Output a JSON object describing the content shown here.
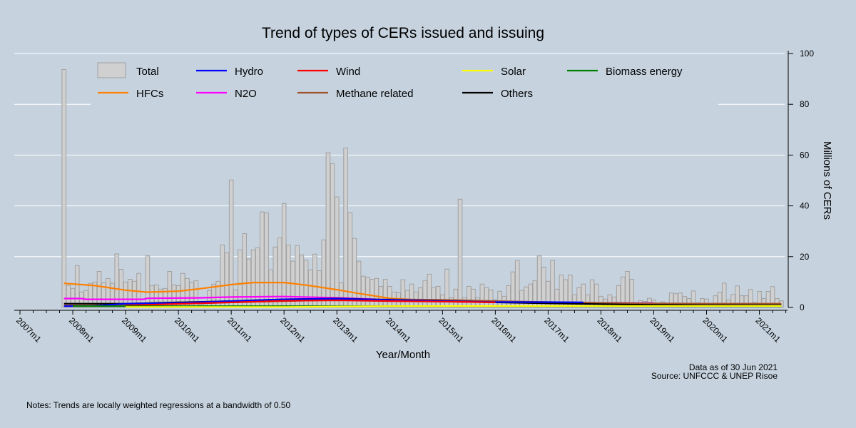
{
  "chart_data": {
    "type": "bar",
    "title": "Trend of types of CERs issued and issuing",
    "xlabel": "Year/Month",
    "ylabel": "Millions of CERs",
    "ylim": [
      0,
      100
    ],
    "yticks": [
      0,
      20,
      40,
      60,
      80,
      100
    ],
    "xticks": [
      "2007m1",
      "2008m1",
      "2009m1",
      "2010m1",
      "2011m1",
      "2012m1",
      "2013m1",
      "2014m1",
      "2015m1",
      "2016m1",
      "2017m1",
      "2018m1",
      "2019m1",
      "2020m1",
      "2021m1"
    ],
    "xlim": [
      "2007m1",
      "2021m6"
    ],
    "grid": true,
    "legend_position": "top",
    "colors": {
      "Total": "#d0d0d0",
      "Hydro": "#0000ff",
      "Wind": "#ff0000",
      "Solar": "#ffff00",
      "Biomass energy": "#008000",
      "HFCs": "#ff8000",
      "N2O": "#ff00ff",
      "Methane related": "#a0522d",
      "Others": "#000000"
    },
    "bars": {
      "name": "Total",
      "start": "2007m11",
      "values": [
        93.7,
        8.7,
        7.5,
        16.5,
        6.1,
        6.7,
        9.5,
        10,
        14.2,
        9.7,
        11.4,
        9.5,
        21.1,
        15,
        10,
        11.1,
        10.3,
        13.4,
        1,
        20.4,
        8.6,
        8.9,
        7.2,
        7.5,
        14.2,
        8.9,
        8.6,
        13.4,
        11.4,
        10,
        10.6,
        1,
        1,
        6.7,
        9.2,
        10.3,
        24.6,
        21.5,
        50.2,
        6.9,
        22.7,
        29.1,
        19.1,
        22.7,
        23.5,
        37.6,
        37.3,
        14.8,
        23.8,
        27.4,
        40.9,
        24.6,
        18.2,
        24.4,
        20.7,
        18.7,
        14.8,
        21,
        14.5,
        26.6,
        60.9,
        56.7,
        43.5,
        9.7,
        62.8,
        37.3,
        27.2,
        18.2,
        12.3,
        11.9,
        11.1,
        11.4,
        8.3,
        11.1,
        8.3,
        6.1,
        5.8,
        10.9,
        6.7,
        9.2,
        6.1,
        7.8,
        10.6,
        13.1,
        7.8,
        8.3,
        5,
        15.1,
        3.8,
        7.2,
        42.6,
        3.8,
        8.3,
        7.2,
        3.8,
        9.2,
        7.8,
        6.9,
        3,
        6.4,
        4.4,
        8.6,
        14,
        18.5,
        6.7,
        8.1,
        9.2,
        10.6,
        20.4,
        15.9,
        10.3,
        18.5,
        7.2,
        12.8,
        10.9,
        12.8,
        5,
        7.8,
        9.2,
        5,
        10.9,
        9.2,
        4.4,
        3.3,
        5,
        4.1,
        8.6,
        12,
        14.2,
        11.1,
        1,
        2.7,
        2.4,
        3.6,
        2.9,
        1,
        2.2,
        1,
        5.7,
        5.4,
        5.7,
        4.3,
        3.5,
        6.5,
        1.8,
        3.5,
        3.3,
        1,
        4.6,
        6,
        9.6,
        2.9,
        5.1,
        8.5,
        4.6,
        4.6,
        7.1,
        1.9,
        6.3,
        3.5,
        6.3,
        8.2,
        3.5,
        2.6
      ]
    },
    "trends": [
      {
        "name": "HFCs",
        "points": [
          [
            "2007m11",
            9.5
          ],
          [
            "2008m6",
            8.6
          ],
          [
            "2009m1",
            6.8
          ],
          [
            "2009m6",
            6
          ],
          [
            "2010m1",
            6.4
          ],
          [
            "2010m6",
            7.4
          ],
          [
            "2011m1",
            9
          ],
          [
            "2011m6",
            9.8
          ],
          [
            "2012m1",
            9.8
          ],
          [
            "2012m6",
            8.8
          ],
          [
            "2013m1",
            7
          ],
          [
            "2013m6",
            5.5
          ],
          [
            "2014m1",
            3.6
          ],
          [
            "2014m6",
            3.1
          ],
          [
            "2015m1",
            2.9
          ],
          [
            "2015m5",
            2.7
          ]
        ]
      },
      {
        "name": "N2O",
        "points": [
          [
            "2007m11",
            3.5
          ],
          [
            "2008m3",
            3.5
          ],
          [
            "2008m4",
            3.2
          ],
          [
            "2009m5",
            3.2
          ],
          [
            "2009m6",
            3.6
          ],
          [
            "2010m6",
            3.8
          ],
          [
            "2011m1",
            4.1
          ],
          [
            "2012m1",
            4.3
          ],
          [
            "2013m1",
            3.8
          ],
          [
            "2014m1",
            3
          ],
          [
            "2015m1",
            2.3
          ],
          [
            "2016m1",
            2.1
          ],
          [
            "2017m1",
            2
          ],
          [
            "2018m1",
            1.8
          ],
          [
            "2019m1",
            1.7
          ]
        ]
      },
      {
        "name": "Methane related",
        "points": [
          [
            "2007m11",
            0.8
          ],
          [
            "2009m1",
            1
          ],
          [
            "2010m1",
            1.4
          ],
          [
            "2011m1",
            2
          ],
          [
            "2012m1",
            2.5
          ],
          [
            "2013m1",
            3
          ],
          [
            "2014m1",
            3.2
          ],
          [
            "2015m1",
            3
          ],
          [
            "2016m1",
            2.5
          ],
          [
            "2017m1",
            2.1
          ],
          [
            "2018m1",
            1.8
          ],
          [
            "2019m1",
            1.6
          ],
          [
            "2020m1",
            1.5
          ],
          [
            "2021m6",
            1.5
          ]
        ]
      },
      {
        "name": "Others",
        "points": [
          [
            "2007m11",
            1.5
          ],
          [
            "2009m1",
            1.5
          ],
          [
            "2010m1",
            2
          ],
          [
            "2011m1",
            2.5
          ],
          [
            "2012m1",
            3.2
          ],
          [
            "2013m1",
            3.5
          ],
          [
            "2014m1",
            3
          ],
          [
            "2015m1",
            2.5
          ],
          [
            "2016m1",
            2
          ],
          [
            "2017m1",
            1.6
          ],
          [
            "2018m1",
            1.3
          ],
          [
            "2019m1",
            1
          ],
          [
            "2020m1",
            0.9
          ],
          [
            "2021m6",
            0.9
          ]
        ]
      },
      {
        "name": "Hydro",
        "points": [
          [
            "2007m11",
            0.5
          ],
          [
            "2008m6",
            0.6
          ],
          [
            "2009m1",
            1.5
          ],
          [
            "2010m1",
            1.8
          ],
          [
            "2011m1",
            2.5
          ],
          [
            "2012m1",
            3.2
          ],
          [
            "2013m1",
            3.4
          ],
          [
            "2014m1",
            3
          ],
          [
            "2015m1",
            2.5
          ],
          [
            "2016m1",
            2.1
          ],
          [
            "2017m1",
            2.1
          ],
          [
            "2017m9",
            2
          ]
        ]
      },
      {
        "name": "Wind",
        "points": [
          [
            "2009m1",
            0.8
          ],
          [
            "2010m1",
            1.4
          ],
          [
            "2011m1",
            2
          ],
          [
            "2012m1",
            2.6
          ],
          [
            "2013m1",
            2.8
          ],
          [
            "2014m1",
            2.5
          ],
          [
            "2015m1",
            2.3
          ],
          [
            "2016m1",
            2
          ]
        ]
      },
      {
        "name": "Biomass energy",
        "points": [
          [
            "2008m1",
            0.5
          ],
          [
            "2021m6",
            0.5
          ]
        ]
      },
      {
        "name": "Solar",
        "points": [
          [
            "2009m1",
            0.2
          ],
          [
            "2012m1",
            0.2
          ],
          [
            "2014m1",
            0.5
          ],
          [
            "2021m6",
            0.6
          ]
        ]
      }
    ],
    "legend": [
      {
        "label": "Total",
        "kind": "box"
      },
      {
        "label": "Hydro",
        "kind": "line"
      },
      {
        "label": "Wind",
        "kind": "line"
      },
      {
        "label": "Solar",
        "kind": "line"
      },
      {
        "label": "Biomass energy",
        "kind": "line"
      },
      {
        "label": "HFCs",
        "kind": "line"
      },
      {
        "label": "N2O",
        "kind": "line"
      },
      {
        "label": "Methane related",
        "kind": "line"
      },
      {
        "label": "Others",
        "kind": "line"
      }
    ]
  },
  "footer": {
    "data_as_of": "Data as of 30 Jun 2021",
    "source": "Source: UNFCCC & UNEP Risoe",
    "notes": "Notes: Trends are locally weighted regressions at a bandwidth of 0.50"
  }
}
